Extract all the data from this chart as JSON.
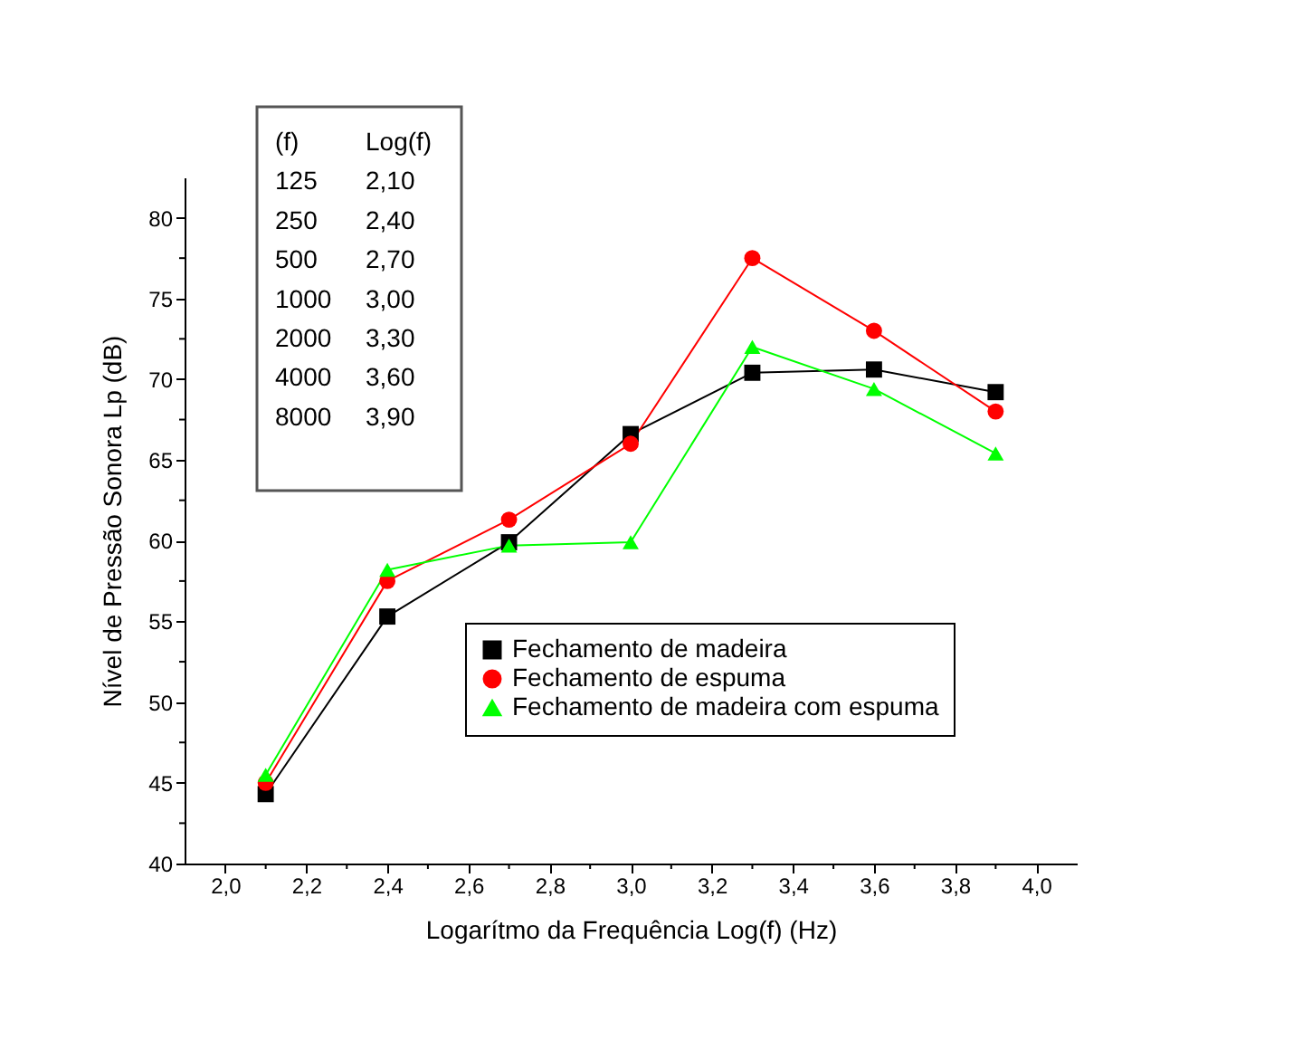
{
  "chart_data": {
    "type": "line",
    "xlabel": "Logarítmo da Frequência Log(f) (Hz)",
    "ylabel": "Nível de Pressão Sonora Lp (dB)",
    "x": [
      2.1,
      2.4,
      2.7,
      3.0,
      3.3,
      3.6,
      3.9
    ],
    "series": [
      {
        "name": "Fechamento de madeira",
        "color": "#000000",
        "marker": "square",
        "values": [
          44.3,
          55.3,
          59.9,
          66.6,
          70.4,
          70.6,
          69.2
        ]
      },
      {
        "name": "Fechamento de espuma",
        "color": "#ff0000",
        "marker": "circle",
        "values": [
          45.0,
          57.5,
          61.3,
          66.0,
          77.5,
          73.0,
          68.0
        ]
      },
      {
        "name": "Fechamento de madeira com espuma",
        "color": "#00ff00",
        "marker": "triangle",
        "values": [
          45.5,
          58.2,
          59.7,
          59.9,
          72.0,
          69.4,
          65.4
        ]
      }
    ],
    "xlim": [
      1.9,
      4.1
    ],
    "xticks": [
      {
        "value": 2.0,
        "label": "2,0"
      },
      {
        "value": 2.1,
        "label": null
      },
      {
        "value": 2.2,
        "label": "2,2"
      },
      {
        "value": 2.3,
        "label": null
      },
      {
        "value": 2.4,
        "label": "2,4"
      },
      {
        "value": 2.5,
        "label": null
      },
      {
        "value": 2.6,
        "label": "2,6"
      },
      {
        "value": 2.7,
        "label": null
      },
      {
        "value": 2.8,
        "label": "2,8"
      },
      {
        "value": 2.9,
        "label": null
      },
      {
        "value": 3.0,
        "label": "3,0"
      },
      {
        "value": 3.1,
        "label": null
      },
      {
        "value": 3.2,
        "label": "3,2"
      },
      {
        "value": 3.3,
        "label": null
      },
      {
        "value": 3.4,
        "label": "3,4"
      },
      {
        "value": 3.5,
        "label": null
      },
      {
        "value": 3.6,
        "label": "3,6"
      },
      {
        "value": 3.7,
        "label": null
      },
      {
        "value": 3.8,
        "label": "3,8"
      },
      {
        "value": 3.9,
        "label": null
      },
      {
        "value": 4.0,
        "label": "4,0"
      }
    ],
    "ylim": [
      40,
      82.5
    ],
    "yticks": [
      40,
      {
        "value": 42.5,
        "label": null
      },
      45,
      {
        "value": 47.5,
        "label": null
      },
      50,
      {
        "value": 52.5,
        "label": null
      },
      55,
      {
        "value": 57.5,
        "label": null
      },
      60,
      {
        "value": 62.5,
        "label": null
      },
      65,
      {
        "value": 67.5,
        "label": null
      },
      70,
      {
        "value": 72.5,
        "label": null
      },
      75,
      {
        "value": 77.5,
        "label": null
      },
      80
    ],
    "grid": false,
    "legend": "bottom right",
    "annotations": [
      "(f)",
      "Log(f)",
      "125",
      "2,10",
      "250",
      "2,40",
      "500",
      "2,70",
      "1000",
      "3,00",
      "2000",
      "3,30",
      "4000",
      "3,60",
      "8000",
      "3,90"
    ]
  }
}
